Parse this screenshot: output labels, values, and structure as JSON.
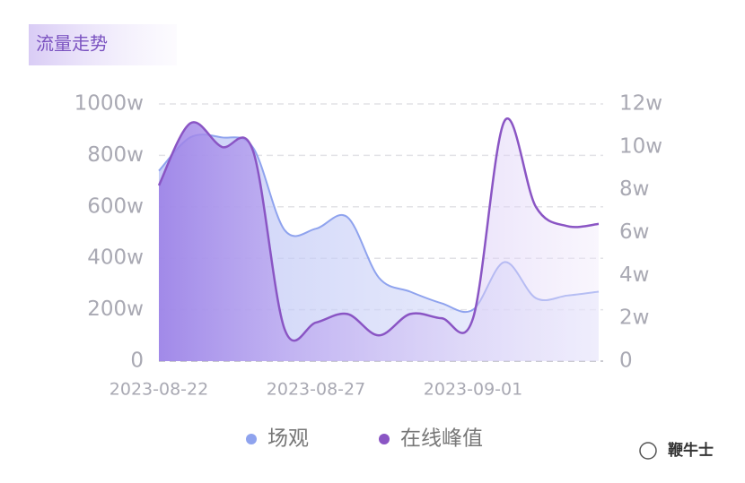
{
  "chart_data": {
    "type": "area-line",
    "title": "流量走势",
    "categories": [
      "2023-08-22",
      null,
      null,
      null,
      null,
      "2023-08-27",
      null,
      null,
      null,
      null,
      "2023-09-01",
      null,
      null,
      null,
      null
    ],
    "series": [
      {
        "name": "场观",
        "color": "#8fa3ee",
        "values": [
          740,
          870,
          870,
          830,
          510,
          515,
          560,
          325,
          270,
          225,
          200,
          385,
          245,
          255,
          270
        ]
      },
      {
        "name": "在线峰值",
        "color": "#8a55c4",
        "axis": "y2",
        "values": [
          8.2,
          11.1,
          10.0,
          9.8,
          1.5,
          1.8,
          2.2,
          1.2,
          2.2,
          2.0,
          2.0,
          11.2,
          7.2,
          6.3,
          6.4
        ]
      }
    ],
    "ylim": [
      0,
      1000
    ],
    "yticks": [
      0,
      {
        "value": 200,
        "label": "200w"
      },
      {
        "value": 400,
        "label": "400w"
      },
      {
        "value": 600,
        "label": "600w"
      },
      {
        "value": 800,
        "label": "800w"
      },
      {
        "value": 1000,
        "label": "1000w"
      }
    ],
    "y2lim": [
      0,
      12
    ],
    "y2ticks": [
      0,
      {
        "value": 2,
        "label": "2w"
      },
      {
        "value": 4,
        "label": "4w"
      },
      {
        "value": 6,
        "label": "6w"
      },
      {
        "value": 8,
        "label": "8w"
      },
      {
        "value": 10,
        "label": "10w"
      },
      {
        "value": 12,
        "label": "12w"
      }
    ],
    "grid": true,
    "legend": "bottom",
    "watermark": "鞭牛士"
  }
}
